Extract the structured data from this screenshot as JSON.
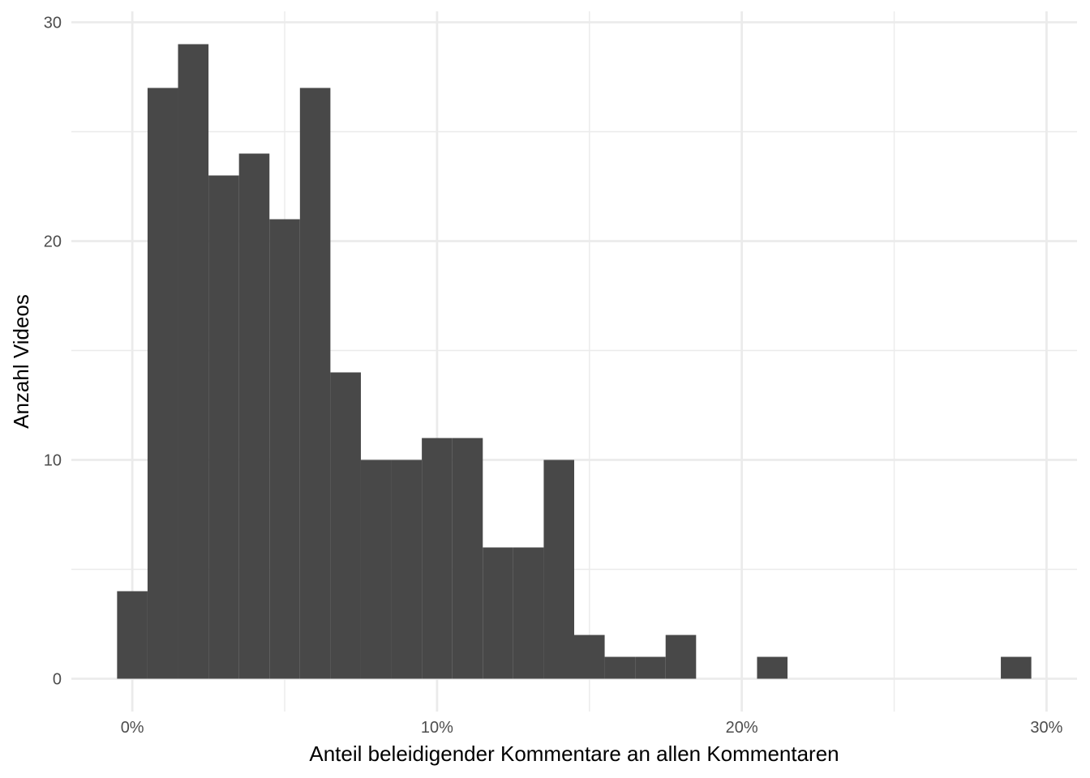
{
  "chart_data": {
    "type": "bar",
    "subtype": "histogram",
    "xlabel": "Anteil beleidigender Kommentare an allen Kommentaren",
    "ylabel": "Anzahl Videos",
    "xlim": [
      -0.02,
      0.31
    ],
    "ylim": [
      -1.5,
      30.5
    ],
    "x_ticks": [
      0,
      0.1,
      0.2,
      0.3
    ],
    "x_tick_labels": [
      "0%",
      "10%",
      "20%",
      "30%"
    ],
    "y_ticks": [
      0,
      10,
      20,
      30
    ],
    "y_tick_labels": [
      "0",
      "10",
      "20",
      "30"
    ],
    "grid": true,
    "bin_width": 0.01,
    "bins": [
      {
        "start": -0.005,
        "end": 0.005,
        "count": 4
      },
      {
        "start": 0.005,
        "end": 0.015,
        "count": 27
      },
      {
        "start": 0.015,
        "end": 0.025,
        "count": 29
      },
      {
        "start": 0.025,
        "end": 0.035,
        "count": 23
      },
      {
        "start": 0.035,
        "end": 0.045,
        "count": 24
      },
      {
        "start": 0.045,
        "end": 0.055,
        "count": 21
      },
      {
        "start": 0.055,
        "end": 0.065,
        "count": 27
      },
      {
        "start": 0.065,
        "end": 0.075,
        "count": 14
      },
      {
        "start": 0.075,
        "end": 0.085,
        "count": 10
      },
      {
        "start": 0.085,
        "end": 0.095,
        "count": 10
      },
      {
        "start": 0.095,
        "end": 0.105,
        "count": 11
      },
      {
        "start": 0.105,
        "end": 0.115,
        "count": 11
      },
      {
        "start": 0.115,
        "end": 0.125,
        "count": 6
      },
      {
        "start": 0.125,
        "end": 0.135,
        "count": 6
      },
      {
        "start": 0.135,
        "end": 0.145,
        "count": 10
      },
      {
        "start": 0.145,
        "end": 0.155,
        "count": 2
      },
      {
        "start": 0.155,
        "end": 0.165,
        "count": 1
      },
      {
        "start": 0.165,
        "end": 0.175,
        "count": 1
      },
      {
        "start": 0.175,
        "end": 0.185,
        "count": 2
      },
      {
        "start": 0.185,
        "end": 0.195,
        "count": 0
      },
      {
        "start": 0.195,
        "end": 0.205,
        "count": 0
      },
      {
        "start": 0.205,
        "end": 0.215,
        "count": 1
      },
      {
        "start": 0.215,
        "end": 0.225,
        "count": 0
      },
      {
        "start": 0.225,
        "end": 0.235,
        "count": 0
      },
      {
        "start": 0.235,
        "end": 0.245,
        "count": 0
      },
      {
        "start": 0.245,
        "end": 0.255,
        "count": 0
      },
      {
        "start": 0.255,
        "end": 0.265,
        "count": 0
      },
      {
        "start": 0.265,
        "end": 0.275,
        "count": 0
      },
      {
        "start": 0.275,
        "end": 0.285,
        "count": 0
      },
      {
        "start": 0.285,
        "end": 0.295,
        "count": 1
      }
    ],
    "bar_color": "#484848",
    "grid_color": "#ebebeb"
  }
}
